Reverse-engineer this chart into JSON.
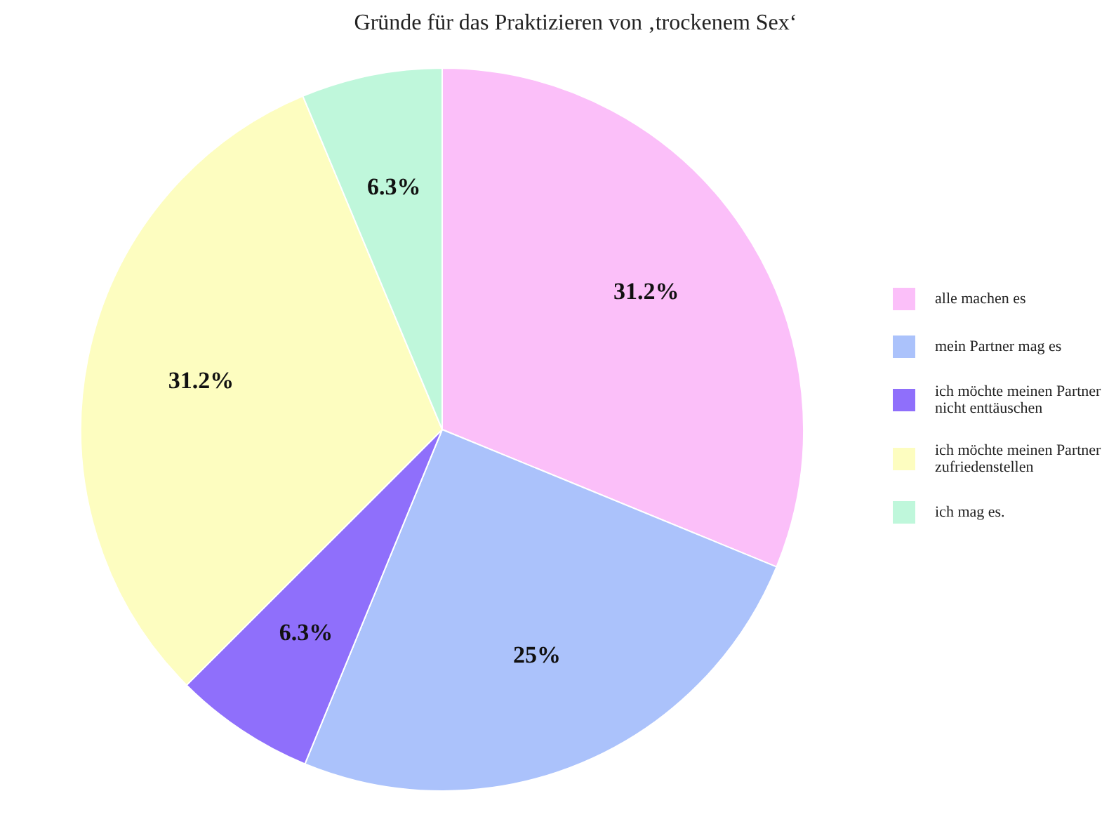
{
  "chart_data": {
    "type": "pie",
    "title": "Gründe für das Praktizieren von ‚trockenem Sex‘",
    "categories": [
      "alle machen es",
      "mein Partner mag es",
      "ich möchte meinen Partner nicht enttäuschen",
      "ich möchte meinen Partner zufriedenstellen",
      "ich mag es."
    ],
    "values": [
      31.2,
      25,
      6.3,
      31.2,
      6.3
    ],
    "colors": [
      "#fbbff9",
      "#abc2fb",
      "#8f6ffb",
      "#fdfdc0",
      "#bff7db"
    ],
    "value_labels": [
      "31.2%",
      "25%",
      "6.3%",
      "31.2%",
      "6.3%"
    ],
    "legend": "right"
  }
}
